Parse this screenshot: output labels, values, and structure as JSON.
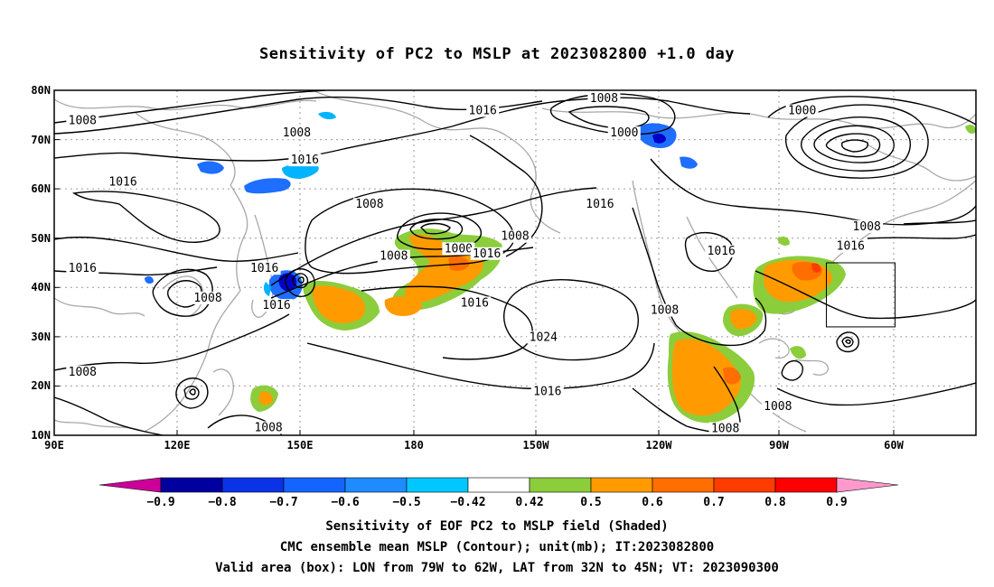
{
  "title": "Sensitivity of PC2 to MSLP at 2023082800 +1.0 day",
  "map": {
    "lat_labels": [
      "80N",
      "70N",
      "60N",
      "50N",
      "40N",
      "30N",
      "20N",
      "10N"
    ],
    "lon_labels": [
      "90E",
      "120E",
      "150E",
      "180",
      "150W",
      "120W",
      "90W",
      "60W"
    ],
    "contour_labels": [
      {
        "text": "1008",
        "lon": 97,
        "lat": 73.5
      },
      {
        "text": "1008",
        "lon": 150,
        "lat": 71.0
      },
      {
        "text": "1016",
        "lon": 152,
        "lat": 65.5
      },
      {
        "text": "1016",
        "lon": 107,
        "lat": 61.0
      },
      {
        "text": "1016",
        "lon": 196,
        "lat": 75.5
      },
      {
        "text": "1008",
        "lon": 226,
        "lat": 78.0
      },
      {
        "text": "1000",
        "lon": 231,
        "lat": 71.0
      },
      {
        "text": "1000",
        "lon": 275,
        "lat": 75.5
      },
      {
        "text": "1008",
        "lon": 168,
        "lat": 56.5
      },
      {
        "text": "1008",
        "lon": 204,
        "lat": 50.0
      },
      {
        "text": "1016",
        "lon": 225,
        "lat": 56.5
      },
      {
        "text": "1000",
        "lon": 190,
        "lat": 47.5
      },
      {
        "text": "1008",
        "lon": 174,
        "lat": 46.0
      },
      {
        "text": "1016",
        "lon": 197,
        "lat": 46.5
      },
      {
        "text": "1016",
        "lon": 97,
        "lat": 43.5
      },
      {
        "text": "1016",
        "lon": 142,
        "lat": 43.5
      },
      {
        "text": "1016",
        "lon": 145,
        "lat": 36.0
      },
      {
        "text": "1008",
        "lon": 128,
        "lat": 37.5
      },
      {
        "text": "1016",
        "lon": 194,
        "lat": 36.5
      },
      {
        "text": "1024",
        "lon": 211,
        "lat": 29.5
      },
      {
        "text": "1016",
        "lon": 212,
        "lat": 18.5
      },
      {
        "text": "1008",
        "lon": 97,
        "lat": 22.5
      },
      {
        "text": "1008",
        "lon": 241,
        "lat": 35.0
      },
      {
        "text": "1016",
        "lon": 255,
        "lat": 47.0
      },
      {
        "text": "1008",
        "lon": 291,
        "lat": 52.0
      },
      {
        "text": "1016",
        "lon": 287,
        "lat": 48.0
      },
      {
        "text": "1008",
        "lon": 269,
        "lat": 15.5
      },
      {
        "text": "1008",
        "lon": 143,
        "lat": 11.2
      },
      {
        "text": "1008",
        "lon": 256,
        "lat": 11.0
      }
    ],
    "valid_box": {
      "lon_min": 281,
      "lon_max": 298,
      "lat_min": 32,
      "lat_max": 45
    },
    "colors": {
      "contour": "#000000",
      "coastline": "#a8a8a8",
      "grid": "#9a9a9a",
      "neg_strong": "#0000c8",
      "neg_mid": "#1e6eff",
      "neg_weak": "#00b4ff",
      "pos_weak": "#8ccd3c",
      "pos_mid": "#ff9b00",
      "pos_strong": "#ff5a00"
    }
  },
  "colorbar": {
    "labels": [
      "−0.9",
      "−0.8",
      "−0.7",
      "−0.6",
      "−0.5",
      "−0.42",
      "0.42",
      "0.5",
      "0.6",
      "0.7",
      "0.8",
      "0.9"
    ],
    "colors": [
      "#cc0099",
      "#0000a0",
      "#0a32e6",
      "#1464ff",
      "#1e8cff",
      "#00c8ff",
      "#ffffff",
      "#8ccd3c",
      "#ff9b00",
      "#ff6e00",
      "#ff3c00",
      "#ff0000",
      "#ff99cc"
    ]
  },
  "captions": {
    "line1": "Sensitivity of EOF PC2 to MSLP field (Shaded)",
    "line2": "CMC ensemble mean MSLP (Contour); unit(mb); IT:2023082800",
    "line3": "Valid area (box): LON from 79W to 62W, LAT from 32N to 45N; VT: 2023090300"
  }
}
